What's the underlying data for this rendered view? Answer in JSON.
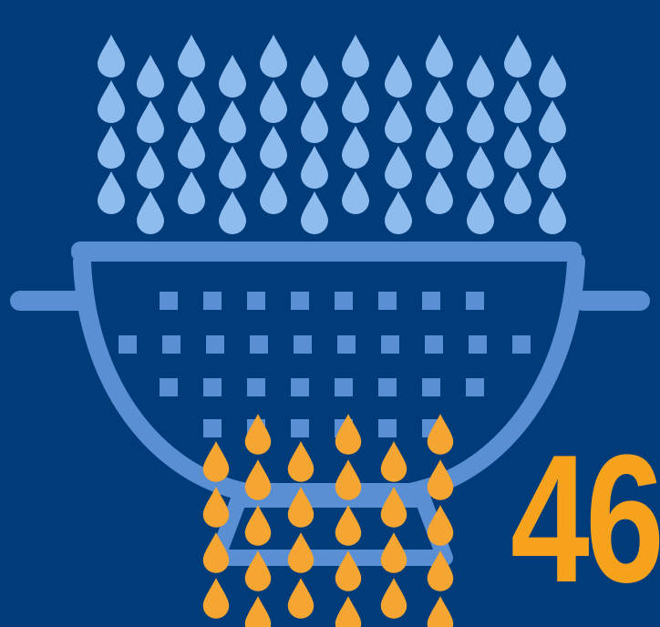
{
  "colors": {
    "background": "#003b7a",
    "colander": "#5b8fd3",
    "water_drops": "#8fbcef",
    "oil_drops": "#f5a531",
    "number": "#f7a21c"
  },
  "icons": {
    "main": "colander-icon",
    "water": "water-drop-icon",
    "oil": "oil-drop-icon"
  },
  "stat": {
    "value": "46"
  }
}
